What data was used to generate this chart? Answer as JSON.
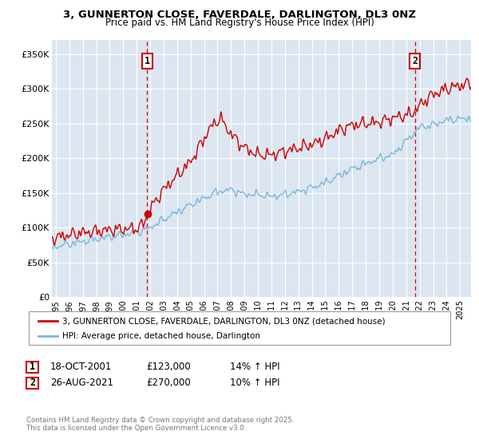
{
  "title": "3, GUNNERTON CLOSE, FAVERDALE, DARLINGTON, DL3 0NZ",
  "subtitle": "Price paid vs. HM Land Registry's House Price Index (HPI)",
  "ylim": [
    0,
    370000
  ],
  "yticks": [
    0,
    50000,
    100000,
    150000,
    200000,
    250000,
    300000,
    350000
  ],
  "ytick_labels": [
    "£0",
    "£50K",
    "£100K",
    "£150K",
    "£200K",
    "£250K",
    "£300K",
    "£350K"
  ],
  "bg_color": "#dce6f1",
  "grid_color": "#ffffff",
  "line1_color": "#cc0000",
  "line2_color": "#7eb6d9",
  "marker1_x": 2001.79,
  "marker2_x": 2021.65,
  "vline_color": "#cc0000",
  "legend_label1": "3, GUNNERTON CLOSE, FAVERDALE, DARLINGTON, DL3 0NZ (detached house)",
  "legend_label2": "HPI: Average price, detached house, Darlington",
  "note1_num": "1",
  "note1_date": "18-OCT-2001",
  "note1_price": "£123,000",
  "note1_hpi": "14% ↑ HPI",
  "note2_num": "2",
  "note2_date": "26-AUG-2021",
  "note2_price": "£270,000",
  "note2_hpi": "10% ↑ HPI",
  "footer": "Contains HM Land Registry data © Crown copyright and database right 2025.\nThis data is licensed under the Open Government Licence v3.0.",
  "xmin": 1994.7,
  "xmax": 2025.8
}
